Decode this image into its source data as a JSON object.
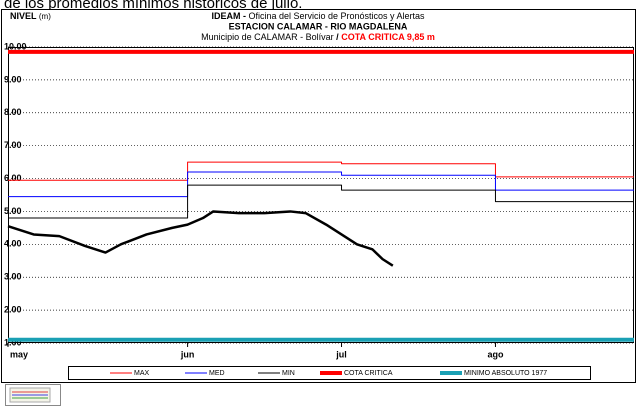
{
  "caption": "de los promedios mínimos históricos de julio.",
  "chart_data": {
    "type": "line",
    "y_label": "NIVEL",
    "y_unit": "(m)",
    "title_org": "IDEAM -",
    "title": "Oficina del Servicio de Pronósticos y Alertas",
    "subtitle": "ESTACION CALAMAR - RIO MAGDALENA",
    "location": "Municipio de CALAMAR - Bolívar",
    "separator": "/",
    "critical_note": "COTA CRITICA 9,85 m",
    "xlim": [
      0,
      122
    ],
    "xticks": [
      {
        "value": 0,
        "label": "may"
      },
      {
        "value": 35,
        "label": "jun"
      },
      {
        "value": 65,
        "label": "jul"
      },
      {
        "value": 95,
        "label": "ago"
      }
    ],
    "ylim": [
      1,
      10
    ],
    "yticks": [
      {
        "value": 1,
        "label": "1.00"
      },
      {
        "value": 2,
        "label": "2.00"
      },
      {
        "value": 3,
        "label": "3.00"
      },
      {
        "value": 4,
        "label": "4.00"
      },
      {
        "value": 5,
        "label": "5.00"
      },
      {
        "value": 6,
        "label": "6.00"
      },
      {
        "value": 7,
        "label": "7.00"
      },
      {
        "value": 8,
        "label": "8.00"
      },
      {
        "value": 9,
        "label": "9.00"
      },
      {
        "value": 10,
        "label": "10.00"
      }
    ],
    "grid": true,
    "series": [
      {
        "name": "MAX",
        "color": "#ff0000",
        "width": 1,
        "x": [
          0,
          35,
          35,
          65,
          65,
          95,
          95,
          122
        ],
        "values": [
          5.95,
          5.95,
          6.5,
          6.5,
          6.45,
          6.45,
          6.05,
          6.05
        ]
      },
      {
        "name": "MED",
        "color": "#0000ff",
        "width": 1,
        "x": [
          0,
          35,
          35,
          65,
          65,
          95,
          95,
          122
        ],
        "values": [
          5.45,
          5.45,
          6.2,
          6.2,
          6.1,
          6.1,
          5.65,
          5.65
        ]
      },
      {
        "name": "MIN",
        "color": "#000000",
        "width": 1,
        "x": [
          0,
          35,
          35,
          65,
          65,
          95,
          95,
          122
        ],
        "values": [
          4.8,
          4.8,
          5.8,
          5.8,
          5.65,
          5.65,
          5.3,
          5.3
        ]
      },
      {
        "name": "COTA CRITICA",
        "color": "#ff0000",
        "width": 4,
        "x": [
          0,
          122
        ],
        "values": [
          9.85,
          9.85
        ]
      },
      {
        "name": "MINIMO ABSOLUTO 1977",
        "color": "#1aa0b4",
        "width": 4,
        "x": [
          0,
          122
        ],
        "values": [
          1.1,
          1.1
        ]
      },
      {
        "color": "#000000",
        "width": 2.5,
        "x": [
          0,
          5,
          10,
          15,
          19,
          22,
          27,
          32,
          35,
          38,
          40,
          45,
          50,
          55,
          58,
          62,
          65,
          68,
          71,
          73,
          75
        ],
        "values": [
          4.55,
          4.3,
          4.25,
          3.95,
          3.75,
          4.0,
          4.3,
          4.5,
          4.6,
          4.8,
          5.0,
          4.95,
          4.95,
          5.0,
          4.95,
          4.6,
          4.3,
          4.0,
          3.85,
          3.55,
          3.35
        ]
      }
    ]
  }
}
